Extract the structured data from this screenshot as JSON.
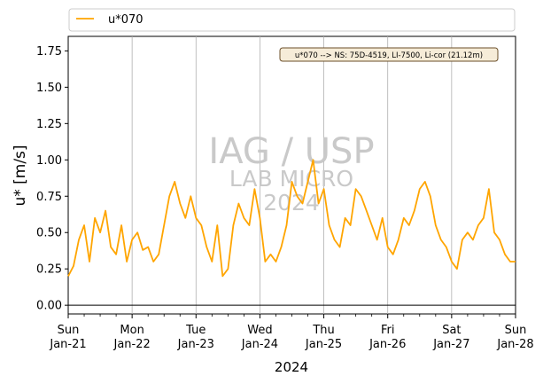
{
  "chart_data": {
    "type": "line",
    "xlabel": "2024",
    "ylabel": "u* [m/s]",
    "ylim": [
      -0.06,
      1.85
    ],
    "yticks": [
      "0.00",
      "0.25",
      "0.50",
      "0.75",
      "1.00",
      "1.25",
      "1.50",
      "1.75"
    ],
    "xlim": [
      "2024-01-21",
      "2024-01-28"
    ],
    "xticks": [
      {
        "day": "Sun",
        "date": "Jan-21"
      },
      {
        "day": "Mon",
        "date": "Jan-22"
      },
      {
        "day": "Tue",
        "date": "Jan-23"
      },
      {
        "day": "Wed",
        "date": "Jan-24"
      },
      {
        "day": "Thu",
        "date": "Jan-25"
      },
      {
        "day": "Fri",
        "date": "Jan-26"
      },
      {
        "day": "Sat",
        "date": "Jan-27"
      },
      {
        "day": "Sun",
        "date": "Jan-28"
      }
    ],
    "grid": "vertical at day ticks",
    "zero_line": 0,
    "legend": {
      "placement": "top, above plot",
      "entries": [
        "u*070"
      ]
    },
    "annotation": "u*070 --> NS: 75D-4519, LI-7500, Li-cor (21.12m)",
    "watermark": {
      "line1": "IAG / USP",
      "line2": "LAB MICRO",
      "line3": "2024"
    },
    "series": [
      {
        "name": "u*070",
        "color": "#FFA500",
        "x": [
          "2024-01-21 00:00",
          "2024-01-21 02:00",
          "2024-01-21 04:00",
          "2024-01-21 06:00",
          "2024-01-21 08:00",
          "2024-01-21 10:00",
          "2024-01-21 12:00",
          "2024-01-21 14:00",
          "2024-01-21 16:00",
          "2024-01-21 18:00",
          "2024-01-21 20:00",
          "2024-01-21 22:00",
          "2024-01-22 00:00",
          "2024-01-22 02:00",
          "2024-01-22 04:00",
          "2024-01-22 06:00",
          "2024-01-22 08:00",
          "2024-01-22 10:00",
          "2024-01-22 12:00",
          "2024-01-22 14:00",
          "2024-01-22 16:00",
          "2024-01-22 18:00",
          "2024-01-22 20:00",
          "2024-01-22 22:00",
          "2024-01-23 00:00",
          "2024-01-23 02:00",
          "2024-01-23 04:00",
          "2024-01-23 06:00",
          "2024-01-23 08:00",
          "2024-01-23 10:00",
          "2024-01-23 12:00",
          "2024-01-23 14:00",
          "2024-01-23 16:00",
          "2024-01-23 18:00",
          "2024-01-23 20:00",
          "2024-01-23 22:00",
          "2024-01-24 00:00",
          "2024-01-24 02:00",
          "2024-01-24 04:00",
          "2024-01-24 06:00",
          "2024-01-24 08:00",
          "2024-01-24 10:00",
          "2024-01-24 12:00",
          "2024-01-24 14:00",
          "2024-01-24 16:00",
          "2024-01-24 18:00",
          "2024-01-24 20:00",
          "2024-01-24 22:00",
          "2024-01-25 00:00",
          "2024-01-25 02:00",
          "2024-01-25 04:00",
          "2024-01-25 06:00",
          "2024-01-25 08:00",
          "2024-01-25 10:00",
          "2024-01-25 12:00",
          "2024-01-25 14:00",
          "2024-01-25 16:00",
          "2024-01-25 18:00",
          "2024-01-25 20:00",
          "2024-01-25 22:00",
          "2024-01-26 00:00",
          "2024-01-26 02:00",
          "2024-01-26 04:00",
          "2024-01-26 06:00",
          "2024-01-26 08:00",
          "2024-01-26 10:00",
          "2024-01-26 12:00",
          "2024-01-26 14:00",
          "2024-01-26 16:00",
          "2024-01-26 18:00",
          "2024-01-26 20:00",
          "2024-01-26 22:00",
          "2024-01-27 00:00",
          "2024-01-27 02:00",
          "2024-01-27 04:00",
          "2024-01-27 06:00",
          "2024-01-27 08:00",
          "2024-01-27 10:00",
          "2024-01-27 12:00",
          "2024-01-27 14:00",
          "2024-01-27 16:00",
          "2024-01-27 18:00",
          "2024-01-27 20:00",
          "2024-01-27 22:00",
          "2024-01-28 00:00"
        ],
        "y": [
          0.2,
          0.27,
          0.45,
          0.55,
          0.3,
          0.6,
          0.5,
          0.65,
          0.4,
          0.35,
          0.55,
          0.3,
          0.45,
          0.5,
          0.38,
          0.4,
          0.3,
          0.35,
          0.55,
          0.75,
          0.85,
          0.7,
          0.6,
          0.75,
          0.6,
          0.55,
          0.4,
          0.3,
          0.55,
          0.2,
          0.25,
          0.55,
          0.7,
          0.6,
          0.55,
          0.8,
          0.6,
          0.3,
          0.35,
          0.3,
          0.4,
          0.55,
          0.85,
          0.75,
          0.7,
          0.85,
          1.0,
          0.7,
          0.8,
          0.55,
          0.45,
          0.4,
          0.6,
          0.55,
          0.8,
          0.75,
          0.65,
          0.55,
          0.45,
          0.6,
          0.4,
          0.35,
          0.45,
          0.6,
          0.55,
          0.65,
          0.8,
          0.85,
          0.75,
          0.55,
          0.45,
          0.4,
          0.3,
          0.25,
          0.45,
          0.5,
          0.45,
          0.55,
          0.6,
          0.8,
          0.5,
          0.45,
          0.35,
          0.3,
          0.3
        ]
      }
    ]
  }
}
